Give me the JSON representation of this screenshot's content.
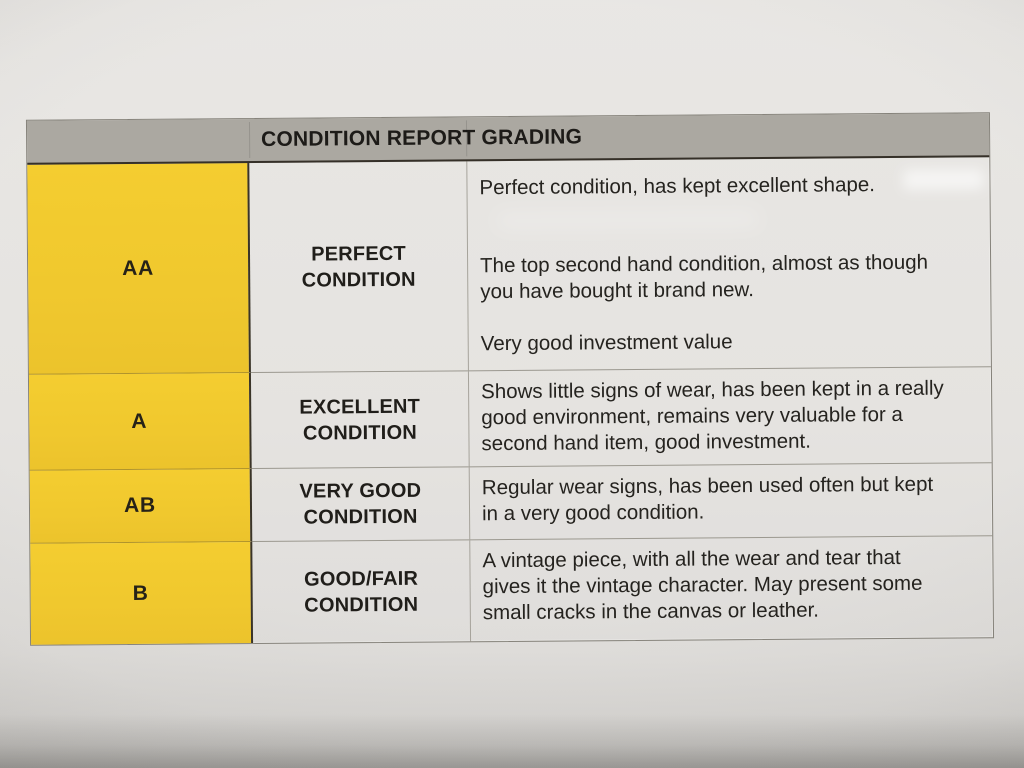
{
  "document": {
    "type": "photographed printed table",
    "title": "CONDITION REPORT GRADING"
  },
  "colors": {
    "grade_column_yellow": "#F0C82E",
    "header_gray": "#ABA8A1",
    "paper": "#E3E1DE",
    "text": "#23211E"
  },
  "table": {
    "header": "CONDITION REPORT GRADING",
    "rows": [
      {
        "grade": "AA",
        "label": "PERFECT CONDITION",
        "desc_lines": [
          [
            "Perfect condition, has kept excellent shape."
          ],
          [
            "The top second hand condition, almost as though",
            "you have bought it brand new."
          ],
          [
            "Very good investment value"
          ]
        ]
      },
      {
        "grade": "A",
        "label": "EXCELLENT CONDITION",
        "desc_lines": [
          [
            "Shows little signs of wear, has been kept in a really",
            "good environment, remains very valuable for a",
            "second hand item, good investment."
          ]
        ]
      },
      {
        "grade": "AB",
        "label": "VERY GOOD CONDITION",
        "desc_lines": [
          [
            "Regular wear signs, has been used often but kept",
            "in a very good condition."
          ]
        ]
      },
      {
        "grade": "B",
        "label": "GOOD/FAIR CONDITION",
        "desc_lines": [
          [
            "A vintage piece, with all the wear and tear that",
            "gives it the vintage character. May present some",
            "small cracks in the canvas or leather."
          ]
        ]
      }
    ]
  }
}
